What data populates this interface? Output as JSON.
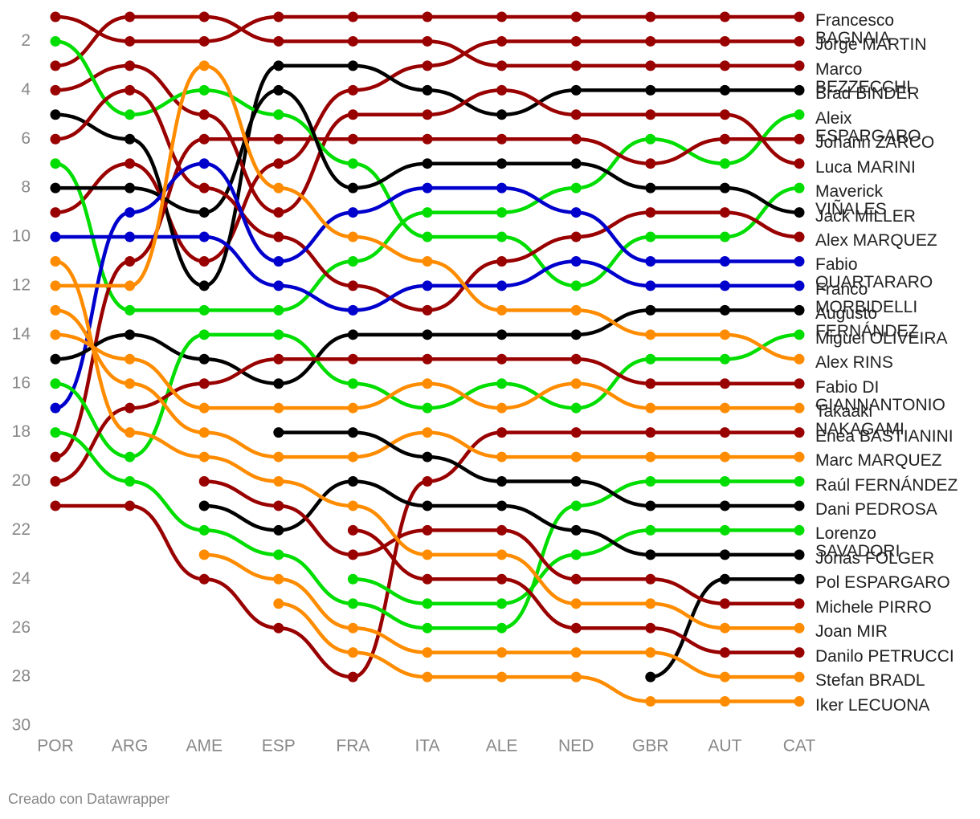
{
  "chart_data": {
    "type": "line",
    "categories": [
      "POR",
      "ARG",
      "AME",
      "ESP",
      "FRA",
      "ITA",
      "ALE",
      "NED",
      "GBR",
      "AUT",
      "CAT"
    ],
    "ylim": [
      1,
      30
    ],
    "y_inverted": true,
    "yticks": [
      2,
      4,
      6,
      8,
      10,
      12,
      14,
      16,
      18,
      20,
      22,
      24,
      26,
      28,
      30
    ],
    "credit": "Creado con Datawrapper",
    "series": [
      {
        "name": "Francesco BAGNAIA",
        "color": "#990000",
        "values": [
          1,
          2,
          2,
          1,
          1,
          1,
          1,
          1,
          1,
          1,
          1
        ]
      },
      {
        "name": "Jorge MARTIN",
        "color": "#990000",
        "values": [
          9,
          7,
          11,
          7,
          4,
          3,
          2,
          2,
          2,
          2,
          2
        ]
      },
      {
        "name": "Marco BEZZECCHI",
        "color": "#990000",
        "values": [
          3,
          1,
          1,
          2,
          2,
          2,
          3,
          3,
          3,
          3,
          3
        ]
      },
      {
        "name": "Brad BINDER",
        "color": "#000000",
        "values": [
          5,
          6,
          12,
          3,
          3,
          4,
          5,
          4,
          4,
          4,
          4
        ]
      },
      {
        "name": "Aleix ESPARGARO",
        "color": "#00dd00",
        "values": [
          7,
          13,
          13,
          13,
          11,
          9,
          9,
          8,
          6,
          7,
          5
        ]
      },
      {
        "name": "Johann ZARCO",
        "color": "#990000",
        "values": [
          19,
          11,
          6,
          6,
          6,
          6,
          6,
          6,
          7,
          6,
          6
        ]
      },
      {
        "name": "Luca MARINI",
        "color": "#990000",
        "values": [
          4,
          3,
          5,
          9,
          5,
          5,
          4,
          5,
          5,
          5,
          7
        ]
      },
      {
        "name": "Maverick VIÑALES",
        "color": "#00dd00",
        "values": [
          2,
          5,
          4,
          5,
          7,
          10,
          10,
          12,
          10,
          10,
          8
        ]
      },
      {
        "name": "Jack MILLER",
        "color": "#000000",
        "values": [
          8,
          8,
          9,
          4,
          8,
          7,
          7,
          7,
          8,
          8,
          9
        ]
      },
      {
        "name": "Alex MARQUEZ",
        "color": "#990000",
        "values": [
          6,
          4,
          8,
          10,
          12,
          13,
          11,
          10,
          9,
          9,
          10
        ]
      },
      {
        "name": "Fabio QUARTARARO",
        "color": "#0000cc",
        "values": [
          17,
          9,
          7,
          11,
          9,
          8,
          8,
          9,
          11,
          11,
          11
        ]
      },
      {
        "name": "Franco MORBIDELLI",
        "color": "#0000cc",
        "values": [
          10,
          10,
          10,
          12,
          13,
          12,
          12,
          11,
          12,
          12,
          12
        ]
      },
      {
        "name": "Augusto FERNÁNDEZ",
        "color": "#000000",
        "values": [
          15,
          14,
          15,
          16,
          14,
          14,
          14,
          14,
          13,
          13,
          13
        ]
      },
      {
        "name": "Miguel OLIVEIRA",
        "color": "#00dd00",
        "values": [
          16,
          19,
          14,
          14,
          16,
          17,
          16,
          17,
          15,
          15,
          14
        ]
      },
      {
        "name": "Alex RINS",
        "color": "#ff8c00",
        "values": [
          12,
          12,
          3,
          8,
          10,
          11,
          13,
          13,
          14,
          14,
          15
        ]
      },
      {
        "name": "Fabio DI GIANNANTONIO",
        "color": "#990000",
        "values": [
          20,
          17,
          16,
          15,
          15,
          15,
          15,
          15,
          16,
          16,
          16
        ]
      },
      {
        "name": "Takaaki NAKAGAMI",
        "color": "#ff8c00",
        "values": [
          14,
          15,
          17,
          17,
          17,
          16,
          17,
          16,
          17,
          17,
          17
        ]
      },
      {
        "name": "Enea BASTIANINI",
        "color": "#990000",
        "values": [
          21,
          21,
          24,
          26,
          28,
          20,
          18,
          18,
          18,
          18,
          18
        ]
      },
      {
        "name": "Marc MARQUEZ",
        "color": "#ff8c00",
        "values": [
          13,
          16,
          18,
          19,
          19,
          18,
          19,
          19,
          19,
          19,
          19
        ]
      },
      {
        "name": "Raúl FERNÁNDEZ",
        "color": "#00dd00",
        "values": [
          18,
          20,
          22,
          23,
          25,
          26,
          26,
          21,
          20,
          20,
          20
        ]
      },
      {
        "name": "Dani PEDROSA",
        "color": "#000000",
        "values": [
          null,
          null,
          null,
          18,
          18,
          19,
          20,
          20,
          21,
          21,
          21
        ]
      },
      {
        "name": "Lorenzo SAVADORI",
        "color": "#00dd00",
        "values": [
          null,
          null,
          null,
          null,
          24,
          25,
          25,
          23,
          22,
          22,
          22
        ]
      },
      {
        "name": "Jonas FOLGER",
        "color": "#000000",
        "values": [
          null,
          null,
          21,
          22,
          20,
          21,
          21,
          22,
          23,
          23,
          23
        ]
      },
      {
        "name": "Pol ESPARGARO",
        "color": "#000000",
        "values": [
          null,
          null,
          null,
          null,
          null,
          null,
          null,
          null,
          28,
          24,
          24
        ]
      },
      {
        "name": "Michele PIRRO",
        "color": "#990000",
        "values": [
          null,
          null,
          20,
          21,
          23,
          22,
          22,
          24,
          24,
          25,
          25
        ]
      },
      {
        "name": "Joan MIR",
        "color": "#ff8c00",
        "values": [
          11,
          18,
          19,
          20,
          21,
          23,
          23,
          25,
          25,
          26,
          26
        ]
      },
      {
        "name": "Danilo PETRUCCI",
        "color": "#990000",
        "values": [
          null,
          null,
          null,
          null,
          22,
          24,
          24,
          26,
          26,
          27,
          27
        ]
      },
      {
        "name": "Stefan BRADL",
        "color": "#ff8c00",
        "values": [
          null,
          null,
          23,
          24,
          26,
          27,
          27,
          27,
          27,
          28,
          28
        ]
      },
      {
        "name": "Iker LECUONA",
        "color": "#ff8c00",
        "values": [
          null,
          null,
          null,
          25,
          27,
          28,
          28,
          28,
          29,
          29,
          29
        ]
      }
    ]
  }
}
